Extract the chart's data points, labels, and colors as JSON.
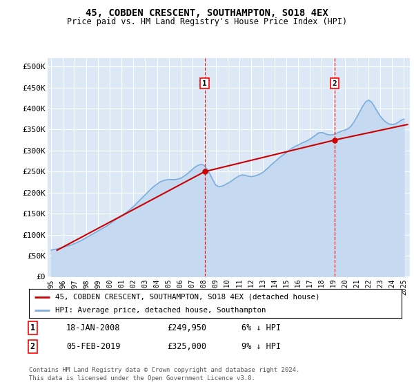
{
  "title": "45, COBDEN CRESCENT, SOUTHAMPTON, SO18 4EX",
  "subtitle": "Price paid vs. HM Land Registry's House Price Index (HPI)",
  "plot_bg_color": "#dce8f5",
  "ylim": [
    0,
    520000
  ],
  "yticks": [
    0,
    50000,
    100000,
    150000,
    200000,
    250000,
    300000,
    350000,
    400000,
    450000,
    500000
  ],
  "ytick_labels": [
    "£0",
    "£50K",
    "£100K",
    "£150K",
    "£200K",
    "£250K",
    "£300K",
    "£350K",
    "£400K",
    "£450K",
    "£500K"
  ],
  "xlim_start": 1994.7,
  "xlim_end": 2025.5,
  "xticks": [
    1995,
    1996,
    1997,
    1998,
    1999,
    2000,
    2001,
    2002,
    2003,
    2004,
    2005,
    2006,
    2007,
    2008,
    2009,
    2010,
    2011,
    2012,
    2013,
    2014,
    2015,
    2016,
    2017,
    2018,
    2019,
    2020,
    2021,
    2022,
    2023,
    2024,
    2025
  ],
  "sale1_x": 2008.05,
  "sale1_y": 249950,
  "sale1_label": "1",
  "sale1_date": "18-JAN-2008",
  "sale1_price": "£249,950",
  "sale1_hpi": "6% ↓ HPI",
  "sale2_x": 2019.09,
  "sale2_y": 325000,
  "sale2_label": "2",
  "sale2_date": "05-FEB-2019",
  "sale2_price": "£325,000",
  "sale2_hpi": "9% ↓ HPI",
  "legend_line1": "45, COBDEN CRESCENT, SOUTHAMPTON, SO18 4EX (detached house)",
  "legend_line2": "HPI: Average price, detached house, Southampton",
  "footer": "Contains HM Land Registry data © Crown copyright and database right 2024.\nThis data is licensed under the Open Government Licence v3.0.",
  "hpi_color": "#7aadde",
  "hpi_fill_color": "#c5daf0",
  "price_color": "#cc0000",
  "hpi_years": [
    1995,
    1995.25,
    1995.5,
    1995.75,
    1996,
    1996.25,
    1996.5,
    1996.75,
    1997,
    1997.25,
    1997.5,
    1997.75,
    1998,
    1998.25,
    1998.5,
    1998.75,
    1999,
    1999.25,
    1999.5,
    1999.75,
    2000,
    2000.25,
    2000.5,
    2000.75,
    2001,
    2001.25,
    2001.5,
    2001.75,
    2002,
    2002.25,
    2002.5,
    2002.75,
    2003,
    2003.25,
    2003.5,
    2003.75,
    2004,
    2004.25,
    2004.5,
    2004.75,
    2005,
    2005.25,
    2005.5,
    2005.75,
    2006,
    2006.25,
    2006.5,
    2006.75,
    2007,
    2007.25,
    2007.5,
    2007.75,
    2008,
    2008.25,
    2008.5,
    2008.75,
    2009,
    2009.25,
    2009.5,
    2009.75,
    2010,
    2010.25,
    2010.5,
    2010.75,
    2011,
    2011.25,
    2011.5,
    2011.75,
    2012,
    2012.25,
    2012.5,
    2012.75,
    2013,
    2013.25,
    2013.5,
    2013.75,
    2014,
    2014.25,
    2014.5,
    2014.75,
    2015,
    2015.25,
    2015.5,
    2015.75,
    2016,
    2016.25,
    2016.5,
    2016.75,
    2017,
    2017.25,
    2017.5,
    2017.75,
    2018,
    2018.25,
    2018.5,
    2018.75,
    2019,
    2019.25,
    2019.5,
    2019.75,
    2020,
    2020.25,
    2020.5,
    2020.75,
    2021,
    2021.25,
    2021.5,
    2021.75,
    2022,
    2022.25,
    2022.5,
    2022.75,
    2023,
    2023.25,
    2023.5,
    2023.75,
    2024,
    2024.25,
    2024.5,
    2024.75,
    2025
  ],
  "hpi_values": [
    63000,
    65000,
    66000,
    68000,
    70000,
    72000,
    74000,
    76000,
    79000,
    82000,
    85000,
    89000,
    93000,
    97000,
    101000,
    105000,
    109000,
    113000,
    117000,
    121000,
    126000,
    131000,
    136000,
    140000,
    145000,
    150000,
    155000,
    161000,
    167000,
    174000,
    181000,
    188000,
    195000,
    202000,
    209000,
    215000,
    220000,
    225000,
    228000,
    230000,
    231000,
    231000,
    231000,
    232000,
    234000,
    238000,
    243000,
    249000,
    255000,
    261000,
    265000,
    267000,
    265000,
    256000,
    244000,
    230000,
    218000,
    214000,
    215000,
    218000,
    222000,
    226000,
    231000,
    236000,
    240000,
    242000,
    241000,
    239000,
    238000,
    239000,
    241000,
    244000,
    248000,
    254000,
    260000,
    267000,
    273000,
    279000,
    285000,
    290000,
    295000,
    301000,
    306000,
    310000,
    313000,
    317000,
    320000,
    323000,
    327000,
    332000,
    337000,
    342000,
    343000,
    341000,
    338000,
    337000,
    338000,
    341000,
    344000,
    347000,
    349000,
    352000,
    358000,
    368000,
    380000,
    393000,
    406000,
    416000,
    420000,
    415000,
    404000,
    392000,
    381000,
    373000,
    367000,
    363000,
    362000,
    363000,
    367000,
    372000,
    375000
  ],
  "price_years": [
    1995.5,
    2008.05,
    2019.09,
    2025.3
  ],
  "price_values": [
    63000,
    249950,
    325000,
    362000
  ]
}
